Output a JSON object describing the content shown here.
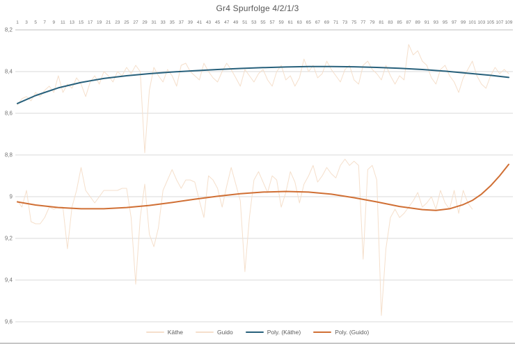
{
  "title": "Gr4 Spurfolge 4/2/1/3",
  "colors": {
    "title_text": "#555555",
    "axis_text": "#757575",
    "gridline": "#d9d9d9",
    "axis_line": "#bfbfbf",
    "raw_series": "#f5dfcb",
    "poly_kaethe": "#27607b",
    "poly_guido": "#d06f34",
    "background": "#ffffff"
  },
  "chart_data": {
    "type": "line",
    "title": "Gr4 Spurfolge 4/2/1/3",
    "grid": "horizontal",
    "legend_position": "bottom",
    "y_axis_reversed": true,
    "x_range": [
      1,
      109
    ],
    "y_range": [
      8.2,
      9.6
    ],
    "x_tick_labels": [
      "1",
      "3",
      "5",
      "7",
      "9",
      "11",
      "13",
      "15",
      "17",
      "19",
      "21",
      "23",
      "25",
      "27",
      "29",
      "31",
      "33",
      "35",
      "37",
      "39",
      "41",
      "43",
      "45",
      "47",
      "49",
      "51",
      "53",
      "55",
      "57",
      "59",
      "61",
      "63",
      "65",
      "67",
      "69",
      "71",
      "73",
      "75",
      "77",
      "79",
      "81",
      "83",
      "85",
      "87",
      "89",
      "91",
      "93",
      "95",
      "97",
      "99",
      "101",
      "103",
      "105",
      "107",
      "109"
    ],
    "y_tick_labels": [
      "8,2",
      "8,4",
      "8,6",
      "8,8",
      "9",
      "9,2",
      "9,4",
      "9,6"
    ],
    "y_tick_values": [
      8.2,
      8.4,
      8.6,
      8.8,
      9.0,
      9.2,
      9.4,
      9.6
    ],
    "series": [
      {
        "name": "Käthe",
        "slug": "kaethe",
        "color": "#f5dfcb",
        "width": 1,
        "x_start": 1,
        "values": [
          8.56,
          8.53,
          8.52,
          8.54,
          8.5,
          8.52,
          8.49,
          8.47,
          8.5,
          8.42,
          8.5,
          8.46,
          8.48,
          8.43,
          8.46,
          8.52,
          8.45,
          8.42,
          8.46,
          8.4,
          8.42,
          8.45,
          8.4,
          8.42,
          8.38,
          8.41,
          8.37,
          8.4,
          8.79,
          8.49,
          8.38,
          8.42,
          8.45,
          8.39,
          8.42,
          8.47,
          8.37,
          8.36,
          8.4,
          8.42,
          8.44,
          8.36,
          8.4,
          8.43,
          8.45,
          8.4,
          8.36,
          8.39,
          8.43,
          8.47,
          8.39,
          8.42,
          8.45,
          8.41,
          8.39,
          8.44,
          8.47,
          8.4,
          8.37,
          8.44,
          8.42,
          8.47,
          8.43,
          8.34,
          8.4,
          8.37,
          8.43,
          8.41,
          8.35,
          8.39,
          8.42,
          8.45,
          8.39,
          8.37,
          8.44,
          8.46,
          8.37,
          8.35,
          8.39,
          8.41,
          8.44,
          8.37,
          8.42,
          8.46,
          8.42,
          8.44,
          8.27,
          8.32,
          8.3,
          8.35,
          8.37,
          8.43,
          8.46,
          8.39,
          8.37,
          8.42,
          8.45,
          8.5,
          8.43,
          8.39,
          8.35,
          8.42,
          8.46,
          8.48,
          8.42,
          8.38,
          8.41,
          8.39,
          8.41
        ]
      },
      {
        "name": "Guido",
        "slug": "guido",
        "color": "#f5dfcb",
        "width": 1,
        "x_start": 1,
        "values": [
          9.02,
          9.05,
          8.97,
          9.12,
          9.13,
          9.13,
          9.1,
          9.05,
          9.06,
          9.05,
          9.05,
          9.25,
          9.05,
          8.97,
          8.86,
          8.97,
          9.0,
          9.03,
          9.0,
          8.97,
          8.97,
          8.97,
          8.97,
          8.96,
          8.96,
          9.1,
          9.42,
          9.1,
          8.94,
          9.18,
          9.24,
          9.15,
          8.97,
          8.92,
          8.87,
          8.92,
          8.96,
          8.92,
          8.92,
          8.93,
          9.02,
          9.1,
          8.9,
          8.92,
          8.96,
          9.05,
          8.95,
          8.86,
          8.94,
          9.02,
          9.36,
          9.1,
          8.92,
          8.88,
          8.93,
          8.98,
          8.9,
          8.92,
          9.05,
          8.98,
          8.88,
          8.93,
          9.03,
          8.94,
          8.9,
          8.85,
          8.93,
          8.9,
          8.86,
          8.89,
          8.91,
          8.85,
          8.82,
          8.85,
          8.83,
          8.85,
          9.3,
          8.87,
          8.85,
          8.92,
          9.57,
          9.25,
          9.1,
          9.06,
          9.1,
          9.08,
          9.05,
          9.02,
          8.98,
          9.05,
          9.03,
          9.0,
          9.06,
          8.97,
          9.03,
          9.06,
          8.97,
          9.08,
          8.97,
          9.03,
          9.06
        ]
      },
      {
        "name": "Poly. (Käthe)",
        "slug": "poly-kaethe",
        "color": "#27607b",
        "width": 2,
        "points": [
          [
            1,
            8.553
          ],
          [
            5,
            8.515
          ],
          [
            10,
            8.478
          ],
          [
            15,
            8.452
          ],
          [
            20,
            8.433
          ],
          [
            25,
            8.42
          ],
          [
            30,
            8.41
          ],
          [
            35,
            8.402
          ],
          [
            40,
            8.396
          ],
          [
            45,
            8.39
          ],
          [
            50,
            8.385
          ],
          [
            55,
            8.381
          ],
          [
            60,
            8.378
          ],
          [
            65,
            8.376
          ],
          [
            70,
            8.376
          ],
          [
            75,
            8.377
          ],
          [
            80,
            8.38
          ],
          [
            85,
            8.384
          ],
          [
            90,
            8.39
          ],
          [
            95,
            8.398
          ],
          [
            100,
            8.408
          ],
          [
            105,
            8.418
          ],
          [
            109,
            8.428
          ]
        ]
      },
      {
        "name": "Poly. (Guido)",
        "slug": "poly-guido",
        "color": "#d06f34",
        "width": 2,
        "points": [
          [
            1,
            9.025
          ],
          [
            5,
            9.04
          ],
          [
            10,
            9.052
          ],
          [
            15,
            9.058
          ],
          [
            20,
            9.058
          ],
          [
            25,
            9.052
          ],
          [
            30,
            9.042
          ],
          [
            35,
            9.028
          ],
          [
            40,
            9.012
          ],
          [
            45,
            8.998
          ],
          [
            50,
            8.986
          ],
          [
            55,
            8.978
          ],
          [
            60,
            8.975
          ],
          [
            65,
            8.978
          ],
          [
            70,
            8.988
          ],
          [
            75,
            9.005
          ],
          [
            80,
            9.025
          ],
          [
            85,
            9.047
          ],
          [
            90,
            9.062
          ],
          [
            93,
            9.066
          ],
          [
            96,
            9.058
          ],
          [
            99,
            9.038
          ],
          [
            101,
            9.018
          ],
          [
            103,
            8.988
          ],
          [
            105,
            8.948
          ],
          [
            107,
            8.9
          ],
          [
            109,
            8.845
          ]
        ]
      }
    ],
    "legend": [
      {
        "label": "Käthe",
        "color": "#f5dfcb",
        "thickness": 1.5
      },
      {
        "label": "Guido",
        "color": "#f5dfcb",
        "thickness": 1.5
      },
      {
        "label": "Poly. (Käthe)",
        "color": "#27607b",
        "thickness": 2
      },
      {
        "label": "Poly. (Guido)",
        "color": "#d06f34",
        "thickness": 2
      }
    ]
  }
}
